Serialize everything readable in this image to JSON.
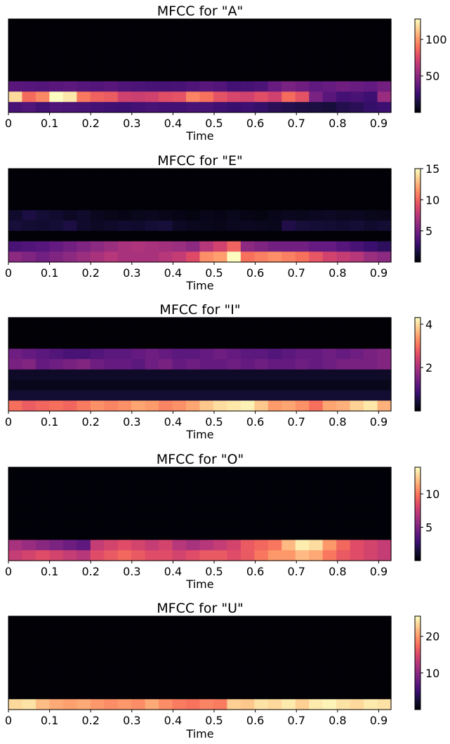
{
  "chart_data": [
    {
      "type": "heatmap",
      "title": "MFCC for \"A\"",
      "xlabel": "Time",
      "xlim": [
        0,
        0.93
      ],
      "xticks": [
        "0",
        "0.1",
        "0.2",
        "0.3",
        "0.4",
        "0.5",
        "0.6",
        "0.7",
        "0.8",
        "0.9"
      ],
      "n_frames": 28,
      "n_rows": 9,
      "colorbar": {
        "range": [
          0,
          128
        ],
        "ticks": [
          50,
          100
        ]
      },
      "rows": [
        {
          "label": "top rows 1-6",
          "count": 6,
          "values": [
            0.5,
            0.5,
            0.5,
            0.5,
            0.5,
            0.5,
            0.5,
            0.5,
            0.5,
            0.5,
            0.5,
            0.5,
            0.5,
            0.5,
            0.5,
            0.5,
            0.5,
            0.5,
            0.5,
            0.5,
            0.5,
            0.5,
            0.5,
            0.5,
            0.5,
            0.5,
            0.5,
            0.5
          ]
        },
        {
          "label": "row 7",
          "count": 1,
          "values": [
            35,
            34,
            33,
            35,
            36,
            34,
            33,
            35,
            32,
            31,
            30,
            29,
            30,
            32,
            35,
            33,
            28,
            29,
            31,
            40,
            45,
            42,
            37,
            39,
            42,
            40,
            38,
            43
          ]
        },
        {
          "label": "row 8",
          "count": 1,
          "values": [
            118,
            88,
            96,
            128,
            122,
            92,
            85,
            83,
            72,
            70,
            72,
            78,
            80,
            95,
            90,
            80,
            74,
            72,
            78,
            72,
            88,
            80,
            45,
            35,
            28,
            30,
            26,
            55
          ]
        },
        {
          "label": "row 9",
          "count": 1,
          "values": [
            30,
            32,
            28,
            32,
            31,
            30,
            28,
            27,
            26,
            28,
            30,
            28,
            28,
            30,
            30,
            27,
            25,
            26,
            24,
            20,
            18,
            16,
            15,
            14,
            18,
            20,
            24,
            26
          ]
        }
      ]
    },
    {
      "type": "heatmap",
      "title": "MFCC for \"E\"",
      "xlabel": "Time",
      "xlim": [
        0,
        0.93
      ],
      "xticks": [
        "0",
        "0.1",
        "0.2",
        "0.3",
        "0.4",
        "0.5",
        "0.6",
        "0.7",
        "0.8",
        "0.9"
      ],
      "n_frames": 28,
      "n_rows": 9,
      "colorbar": {
        "range": [
          0,
          15
        ],
        "ticks": [
          5,
          10,
          15
        ]
      },
      "rows": [
        {
          "label": "top rows 1-4",
          "count": 4,
          "values": [
            0.1,
            0.1,
            0.1,
            0.1,
            0.1,
            0.1,
            0.1,
            0.1,
            0.1,
            0.1,
            0.1,
            0.1,
            0.1,
            0.1,
            0.1,
            0.1,
            0.1,
            0.1,
            0.1,
            0.1,
            0.1,
            0.1,
            0.1,
            0.1,
            0.1,
            0.1,
            0.1,
            0.1
          ]
        },
        {
          "label": "row 5",
          "count": 1,
          "values": [
            1.2,
            1.8,
            1.5,
            1.3,
            1.0,
            1.2,
            0.8,
            0.6,
            0.5,
            0.7,
            0.8,
            0.6,
            0.5,
            0.4,
            0.6,
            0.5,
            0.7,
            0.5,
            0.4,
            0.6,
            0.8,
            0.7,
            0.9,
            1.0,
            0.8,
            0.9,
            0.7,
            0.6
          ]
        },
        {
          "label": "row 6",
          "count": 1,
          "values": [
            1.6,
            1.4,
            1.3,
            1.5,
            1.8,
            1.2,
            1.0,
            1.1,
            1.3,
            1.2,
            1.5,
            1.6,
            1.0,
            0.8,
            0.7,
            0.6,
            0.8,
            0.9,
            0.8,
            0.7,
            2.0,
            1.6,
            1.5,
            1.4,
            1.3,
            1.5,
            1.2,
            1.4
          ]
        },
        {
          "label": "row 7",
          "count": 1,
          "values": [
            0.1,
            0.1,
            0.1,
            0.1,
            0.1,
            0.1,
            0.1,
            0.1,
            0.1,
            0.1,
            0.1,
            0.1,
            0.1,
            0.1,
            0.1,
            0.1,
            0.1,
            0.1,
            0.1,
            0.1,
            0.1,
            0.1,
            0.1,
            0.1,
            0.1,
            0.1,
            0.1,
            0.1
          ]
        },
        {
          "label": "row 8",
          "count": 1,
          "values": [
            3.5,
            3.8,
            4.0,
            4.5,
            5.0,
            5.5,
            6.0,
            6.5,
            7.0,
            7.2,
            7.0,
            6.8,
            6.5,
            6.0,
            7.5,
            8.5,
            10.0,
            6.0,
            5.5,
            5.0,
            5.0,
            5.0,
            4.5,
            4.5,
            4.0,
            3.5,
            3.0,
            2.5
          ]
        },
        {
          "label": "row 9",
          "count": 1,
          "values": [
            6.0,
            5.5,
            5.0,
            5.5,
            6.0,
            6.5,
            7.0,
            7.5,
            7.0,
            7.0,
            7.0,
            7.5,
            8.0,
            9.0,
            11.5,
            12.0,
            15.0,
            10.5,
            11.0,
            11.5,
            11.0,
            10.5,
            9.5,
            8.5,
            8.0,
            7.5,
            6.5,
            6.0
          ]
        }
      ]
    },
    {
      "type": "heatmap",
      "title": "MFCC for \"I\"",
      "xlabel": "Time",
      "xlim": [
        0,
        0.93
      ],
      "xticks": [
        "0",
        "0.1",
        "0.2",
        "0.3",
        "0.4",
        "0.5",
        "0.6",
        "0.7",
        "0.8",
        "0.9"
      ],
      "n_frames": 28,
      "n_rows": 9,
      "colorbar": {
        "range": [
          0,
          4.3
        ],
        "ticks": [
          2,
          4
        ]
      },
      "rows": [
        {
          "label": "top rows 1-3",
          "count": 3,
          "values": [
            0.02,
            0.02,
            0.02,
            0.02,
            0.02,
            0.02,
            0.02,
            0.02,
            0.02,
            0.02,
            0.02,
            0.02,
            0.02,
            0.02,
            0.02,
            0.02,
            0.02,
            0.02,
            0.02,
            0.02,
            0.02,
            0.02,
            0.02,
            0.02,
            0.02,
            0.02,
            0.02,
            0.02
          ]
        },
        {
          "label": "row 4",
          "count": 1,
          "values": [
            1.4,
            1.3,
            1.2,
            1.1,
            1.0,
            1.0,
            1.1,
            1.2,
            1.2,
            1.3,
            1.4,
            1.3,
            1.2,
            1.2,
            1.3,
            1.4,
            1.3,
            1.2,
            1.2,
            1.1,
            1.2,
            1.3,
            1.3,
            1.4,
            1.3,
            1.4,
            1.5,
            1.6
          ]
        },
        {
          "label": "row 5",
          "count": 1,
          "values": [
            1.5,
            1.6,
            1.3,
            1.4,
            1.5,
            1.6,
            1.4,
            1.3,
            1.3,
            1.2,
            1.4,
            1.5,
            1.3,
            1.4,
            1.3,
            1.3,
            1.4,
            1.3,
            1.4,
            1.3,
            1.3,
            1.4,
            1.3,
            1.4,
            1.5,
            1.5,
            1.5,
            1.6
          ]
        },
        {
          "label": "row 6",
          "count": 1,
          "values": [
            0.3,
            0.3,
            0.3,
            0.3,
            0.3,
            0.3,
            0.3,
            0.3,
            0.3,
            0.3,
            0.3,
            0.3,
            0.3,
            0.3,
            0.3,
            0.3,
            0.3,
            0.3,
            0.3,
            0.3,
            0.3,
            0.3,
            0.3,
            0.3,
            0.3,
            0.3,
            0.3,
            0.3
          ]
        },
        {
          "label": "row 7",
          "count": 1,
          "values": [
            0.2,
            0.2,
            0.2,
            0.2,
            0.2,
            0.2,
            0.2,
            0.2,
            0.2,
            0.2,
            0.2,
            0.2,
            0.2,
            0.2,
            0.2,
            0.2,
            0.2,
            0.2,
            0.2,
            0.2,
            0.2,
            0.2,
            0.2,
            0.2,
            0.2,
            0.2,
            0.2,
            0.2
          ]
        },
        {
          "label": "row 8",
          "count": 1,
          "values": [
            0.4,
            0.4,
            0.4,
            0.4,
            0.4,
            0.4,
            0.4,
            0.4,
            0.4,
            0.4,
            0.4,
            0.4,
            0.4,
            0.4,
            0.4,
            0.4,
            0.4,
            0.4,
            0.4,
            0.4,
            0.4,
            0.4,
            0.4,
            0.4,
            0.4,
            0.4,
            0.4,
            0.4
          ]
        },
        {
          "label": "row 9",
          "count": 1,
          "values": [
            3.0,
            2.8,
            2.9,
            3.0,
            2.9,
            3.1,
            3.3,
            3.2,
            3.3,
            3.5,
            3.4,
            3.2,
            3.3,
            3.5,
            3.8,
            4.0,
            4.1,
            4.2,
            3.8,
            3.4,
            3.5,
            3.3,
            3.0,
            3.5,
            3.6,
            3.9,
            4.1,
            3.6
          ]
        }
      ]
    },
    {
      "type": "heatmap",
      "title": "MFCC for \"O\"",
      "xlabel": "Time",
      "xlim": [
        0,
        0.93
      ],
      "xticks": [
        "0",
        "0.1",
        "0.2",
        "0.3",
        "0.4",
        "0.5",
        "0.6",
        "0.7",
        "0.8",
        "0.9"
      ],
      "n_frames": 28,
      "n_rows": 9,
      "colorbar": {
        "range": [
          0,
          14
        ],
        "ticks": [
          5,
          10
        ]
      },
      "rows": [
        {
          "label": "top rows 1-7",
          "count": 7,
          "values": [
            0.1,
            0.1,
            0.1,
            0.1,
            0.1,
            0.1,
            0.1,
            0.1,
            0.1,
            0.1,
            0.1,
            0.1,
            0.1,
            0.1,
            0.1,
            0.1,
            0.1,
            0.1,
            0.1,
            0.1,
            0.1,
            0.1,
            0.1,
            0.1,
            0.1,
            0.1,
            0.1,
            0.1
          ]
        },
        {
          "label": "row 8",
          "count": 1,
          "values": [
            6.5,
            6.0,
            5.5,
            5.0,
            4.5,
            4.0,
            7.5,
            8.0,
            8.5,
            8.0,
            7.5,
            8.0,
            7.0,
            6.5,
            7.0,
            7.5,
            8.0,
            9.0,
            9.5,
            10.0,
            12.0,
            13.5,
            13.0,
            11.0,
            9.5,
            8.5,
            8.0,
            7.5
          ]
        },
        {
          "label": "row 9",
          "count": 1,
          "values": [
            7.5,
            8.0,
            8.5,
            8.0,
            7.5,
            7.0,
            8.5,
            9.0,
            9.5,
            9.0,
            8.5,
            8.5,
            8.0,
            8.5,
            9.0,
            9.0,
            8.5,
            9.0,
            10.0,
            11.0,
            11.0,
            12.0,
            11.5,
            10.0,
            9.0,
            8.5,
            8.0,
            7.5
          ]
        }
      ]
    },
    {
      "type": "heatmap",
      "title": "MFCC for \"U\"",
      "xlabel": "Time",
      "xlim": [
        0,
        0.93
      ],
      "xticks": [
        "0",
        "0.1",
        "0.2",
        "0.3",
        "0.4",
        "0.5",
        "0.6",
        "0.7",
        "0.8",
        "0.9"
      ],
      "n_frames": 28,
      "n_rows": 9,
      "colorbar": {
        "range": [
          0,
          25.5
        ],
        "ticks": [
          10,
          20
        ]
      },
      "rows": [
        {
          "label": "top rows 1-8",
          "count": 8,
          "values": [
            0.1,
            0.1,
            0.1,
            0.1,
            0.1,
            0.1,
            0.1,
            0.1,
            0.1,
            0.1,
            0.1,
            0.1,
            0.1,
            0.1,
            0.1,
            0.1,
            0.1,
            0.1,
            0.1,
            0.1,
            0.1,
            0.1,
            0.1,
            0.1,
            0.1,
            0.1,
            0.1,
            0.1
          ]
        },
        {
          "label": "row 9",
          "count": 1,
          "values": [
            23.5,
            24.0,
            22.0,
            21.0,
            20.5,
            21.0,
            20.0,
            19.5,
            20.0,
            19.5,
            21.0,
            19.5,
            18.5,
            18.0,
            19.0,
            18.5,
            23.0,
            22.5,
            24.0,
            23.5,
            24.5,
            23.0,
            24.5,
            25.0,
            24.0,
            23.5,
            24.5,
            24.0
          ]
        }
      ]
    }
  ]
}
